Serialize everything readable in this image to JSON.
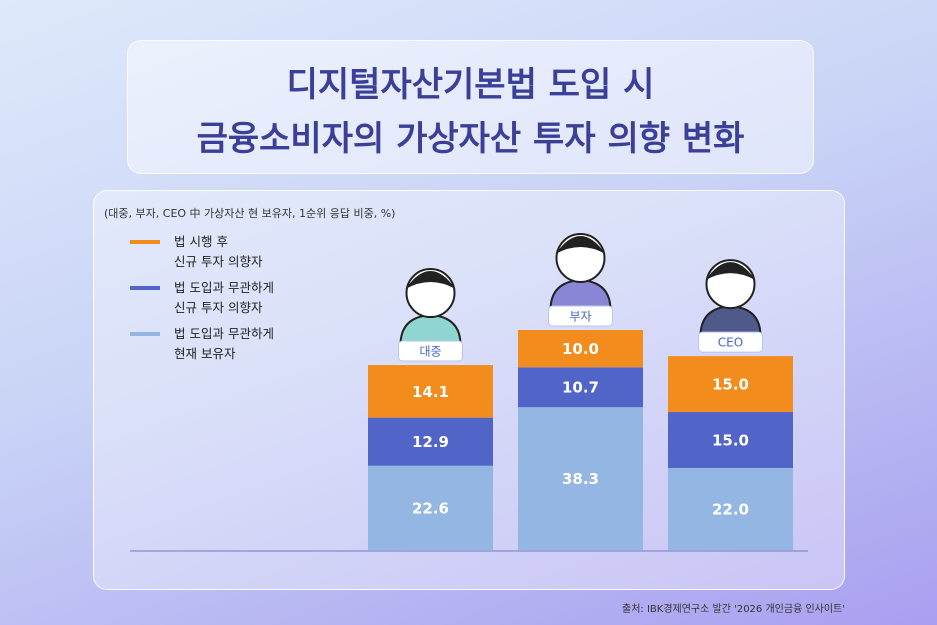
{
  "title_lines": [
    "디지털자산기본법 도입 시",
    "금융소비자의 가상자산 투자 의향 변화"
  ],
  "source": "출처: IBK경제연구소 발간 '2026 개인금융 인사이트'",
  "chart_data": {
    "type": "stacked_bar",
    "subtitle": "(대중, 부자, CEO 中 가상자산 현 보유자, 1순위 응답 비중, %)",
    "categories": [
      "대중",
      "부자",
      "CEO"
    ],
    "series": [
      {
        "name": "법 시행 후\n신규 투자 의향자",
        "color": "#f28c1c",
        "values": [
          14.1,
          10.0,
          15.0
        ],
        "value_labels": [
          "14.1",
          "10.0",
          "15.0"
        ]
      },
      {
        "name": "법 도입과 무관하게\n신규 투자 의향자",
        "color": "#5164c8",
        "values": [
          12.9,
          10.7,
          15.0
        ],
        "value_labels": [
          "12.9",
          "10.7",
          "15.0"
        ]
      },
      {
        "name": "법 도입과 무관하게\n현재 보유자",
        "color": "#94b6e2",
        "values": [
          22.6,
          38.3,
          22.0
        ],
        "value_labels": [
          "22.6",
          "38.3",
          "22.0"
        ]
      }
    ]
  }
}
